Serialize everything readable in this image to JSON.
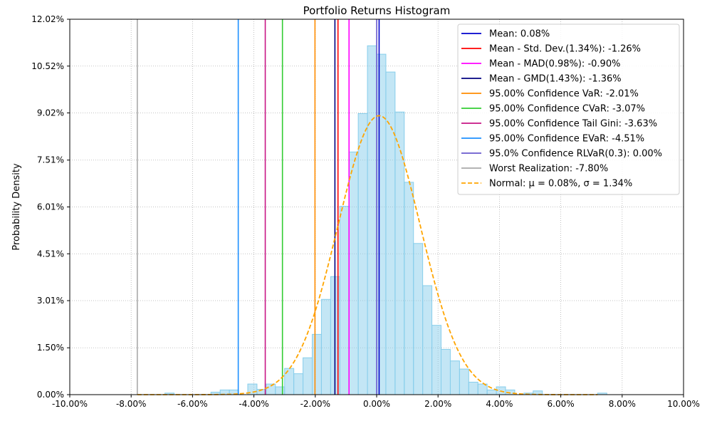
{
  "chart_data": {
    "type": "histogram",
    "title": "Portfolio Returns Histogram",
    "xlabel": "",
    "ylabel": "Probability Density",
    "xlim": [
      -0.1,
      0.1
    ],
    "ylim": [
      0,
      0.1202
    ],
    "grid": true,
    "legend_position": "top-right",
    "x_ticks": [
      -0.1,
      -0.08,
      -0.06,
      -0.04,
      -0.02,
      0.0,
      0.02,
      0.04,
      0.06,
      0.08,
      0.1
    ],
    "x_tick_labels": [
      "-10.00%",
      "-8.00%",
      "-6.00%",
      "-4.00%",
      "-2.00%",
      "0.00%",
      "2.00%",
      "4.00%",
      "6.00%",
      "8.00%",
      "10.00%"
    ],
    "y_ticks": [
      0.0,
      0.015,
      0.0301,
      0.0451,
      0.0601,
      0.0751,
      0.0902,
      0.1052,
      0.1202
    ],
    "y_tick_labels": [
      "0.00%",
      "1.50%",
      "3.01%",
      "4.51%",
      "6.01%",
      "7.51%",
      "9.02%",
      "10.52%",
      "12.02%"
    ],
    "histogram": {
      "bin_start": -0.078,
      "bin_width": 0.003,
      "values": [
        0,
        0,
        0,
        0.0005,
        0,
        0,
        0,
        0,
        0.0008,
        0.0015,
        0.0015,
        0,
        0.0034,
        0.0017,
        0.0034,
        0.0025,
        0.0084,
        0.0067,
        0.0118,
        0.0193,
        0.0305,
        0.0378,
        0.0603,
        0.0777,
        0.09,
        0.1117,
        0.109,
        0.1033,
        0.0905,
        0.068,
        0.0484,
        0.0349,
        0.0222,
        0.0145,
        0.0108,
        0.0082,
        0.004,
        0.0034,
        0.0015,
        0.0025,
        0.0015,
        0,
        0.0005,
        0.0012,
        0,
        0,
        0,
        0,
        0,
        0,
        0.0005
      ],
      "color": "#87ceeb",
      "edge_color": "#87ceeb"
    },
    "vertical_lines": [
      {
        "name": "Mean: 0.08%",
        "x": 0.0008,
        "color": "#0000cd"
      },
      {
        "name": "Mean - Std. Dev.(1.34%): -1.26%",
        "x": -0.0126,
        "color": "#ff0000"
      },
      {
        "name": "Mean - MAD(0.98%): -0.90%",
        "x": -0.009,
        "color": "#ff00ff"
      },
      {
        "name": "Mean - GMD(1.43%): -1.36%",
        "x": -0.0136,
        "color": "#000080"
      },
      {
        "name": "95.00% Confidence VaR: -2.01%",
        "x": -0.0201,
        "color": "#ff8c00"
      },
      {
        "name": "95.00% Confidence CVaR: -3.07%",
        "x": -0.0307,
        "color": "#32cd32"
      },
      {
        "name": "95.00% Confidence Tail Gini: -3.63%",
        "x": -0.0363,
        "color": "#c71585"
      },
      {
        "name": "95.00% Confidence EVaR: -4.51%",
        "x": -0.0451,
        "color": "#1e90ff"
      },
      {
        "name": "95.0% Confidence RLVaR(0.3): 0.00%",
        "x": 0.0,
        "color": "#6a5acd"
      },
      {
        "name": "Worst Realization: -7.80%",
        "x": -0.078,
        "color": "#a9a9a9"
      }
    ],
    "normal_curve": {
      "label": "Normal: μ = 0.08%, σ = 1.34%",
      "mu": 0.0008,
      "sigma": 0.0134,
      "color": "#ffa500",
      "dash": true
    }
  }
}
